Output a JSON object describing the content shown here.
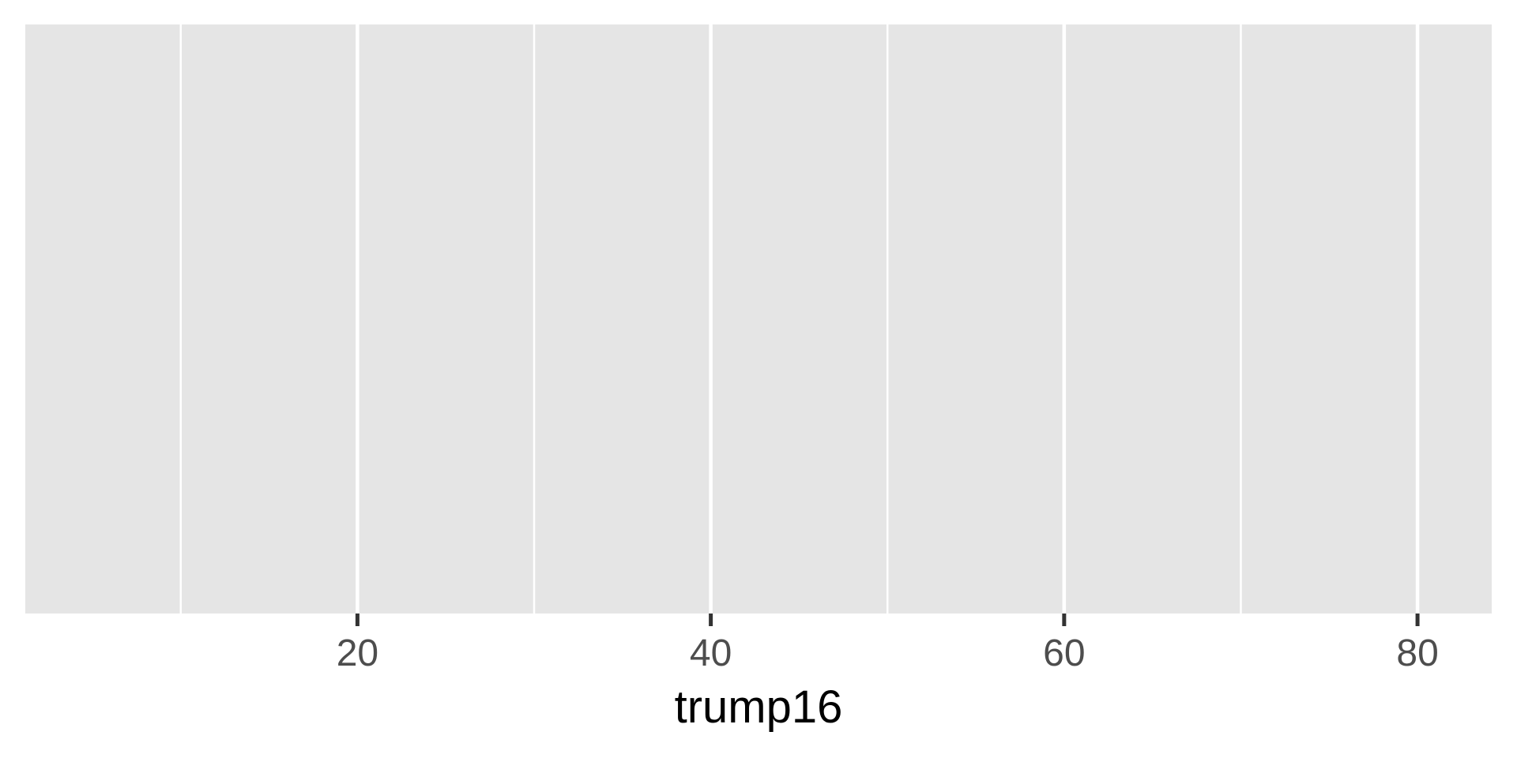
{
  "chart_data": {
    "type": "scatter",
    "title": "",
    "xlabel": "trump16",
    "ylabel": "",
    "xlim": [
      1.2,
      84.2
    ],
    "x_ticks": [
      20,
      40,
      60,
      80
    ],
    "x_tick_labels": [
      "20",
      "40",
      "60",
      "80"
    ],
    "x_minor_gridlines": [
      10,
      30,
      50,
      70
    ],
    "grid": true,
    "panel_color": "#e5e5e5",
    "grid_color": "#ffffff",
    "series": []
  }
}
